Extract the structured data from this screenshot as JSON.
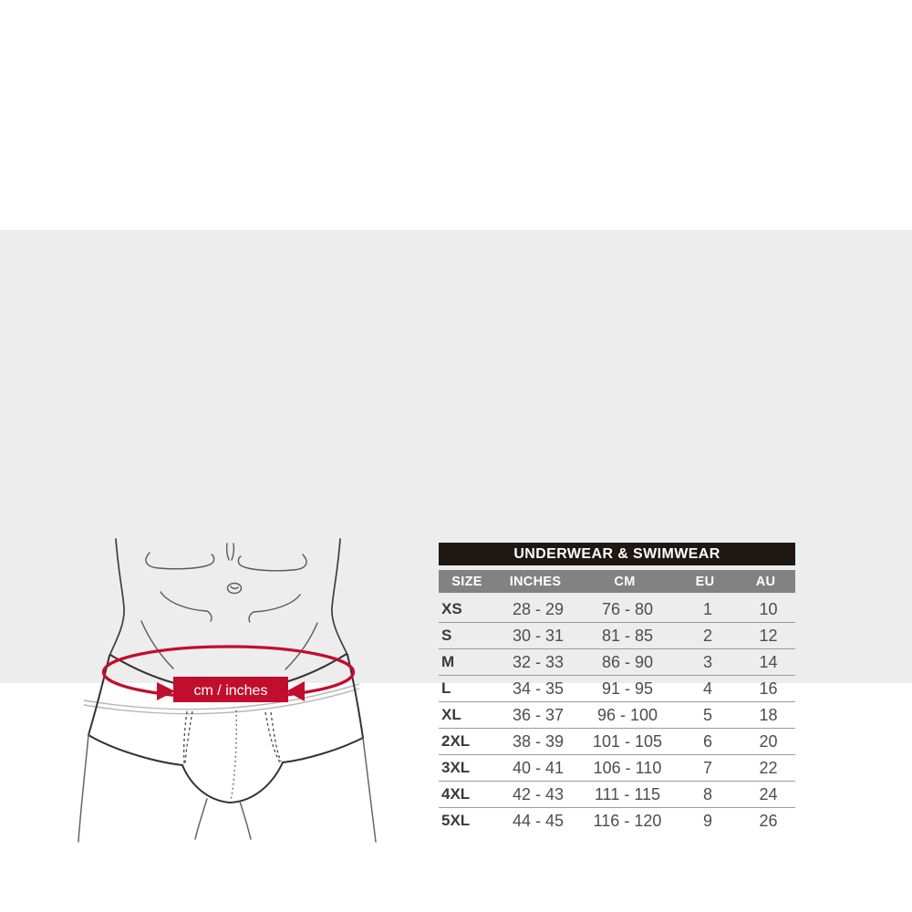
{
  "page": {
    "background": "#ffffff",
    "panel_background": "#ededed"
  },
  "figure": {
    "label": "cm / inches",
    "accent_color": "#c10e2c",
    "outline_color": "#3f3f3f"
  },
  "chart_data": {
    "type": "table",
    "title": "UNDERWEAR & SWIMWEAR",
    "columns": [
      "SIZE",
      "INCHES",
      "CM",
      "EU",
      "AU"
    ],
    "rows": [
      [
        "XS",
        "28 - 29",
        "76 - 80",
        "1",
        "10"
      ],
      [
        "S",
        "30 - 31",
        "81 - 85",
        "2",
        "12"
      ],
      [
        "M",
        "32 - 33",
        "86 - 90",
        "3",
        "14"
      ],
      [
        "L",
        "34 - 35",
        "91 - 95",
        "4",
        "16"
      ],
      [
        "XL",
        "36 - 37",
        "96 - 100",
        "5",
        "18"
      ],
      [
        "2XL",
        "38 - 39",
        "101 - 105",
        "6",
        "20"
      ],
      [
        "3XL",
        "40 - 41",
        "106 - 110",
        "7",
        "22"
      ],
      [
        "4XL",
        "42 - 43",
        "111 - 115",
        "8",
        "24"
      ],
      [
        "5XL",
        "44 - 45",
        "116 - 120",
        "9",
        "26"
      ]
    ],
    "colors": {
      "title_bg": "#1f1712",
      "header_bg": "#828282",
      "divider": "#9b9b9b"
    }
  }
}
